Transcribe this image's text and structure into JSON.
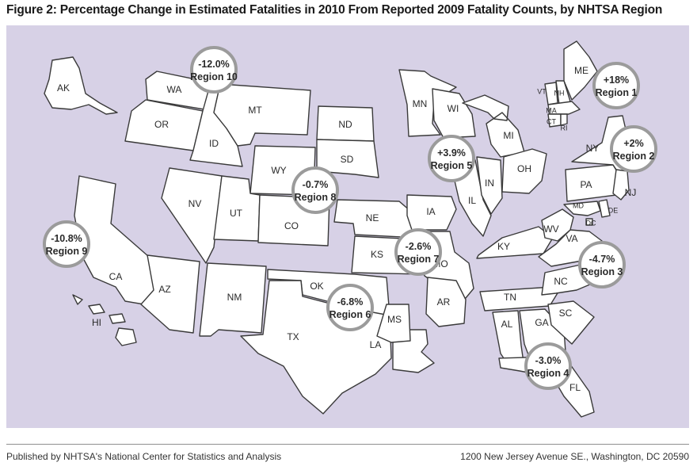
{
  "title": "Figure 2: Percentage Change in Estimated Fatalities in 2010 From Reported 2009 Fatality Counts, by NHTSA Region",
  "footer": {
    "left": "Published by NHTSA's National Center for Statistics and Analysis",
    "right": "1200 New Jersey Avenue SE., Washington, DC 20590"
  },
  "colors": {
    "background": "#d7d1e6",
    "state_fill": "#ffffff",
    "state_stroke": "#3a3a3a",
    "badge_ring": "#9b9b9b"
  },
  "states": [
    "AK",
    "WA",
    "OR",
    "ID",
    "MT",
    "ND",
    "SD",
    "WY",
    "NV",
    "UT",
    "CO",
    "CA",
    "AZ",
    "NM",
    "NE",
    "KS",
    "OK",
    "TX",
    "HI",
    "MN",
    "IA",
    "MO",
    "AR",
    "LA",
    "MS",
    "WI",
    "IL",
    "IN",
    "MI",
    "OH",
    "KY",
    "TN",
    "AL",
    "GA",
    "SC",
    "FL",
    "NC",
    "VA",
    "WV",
    "MD",
    "DE",
    "DC",
    "PA",
    "NY",
    "NJ",
    "ME",
    "VT",
    "NH",
    "MA",
    "CT",
    "RI"
  ],
  "regions": [
    {
      "name": "Region 1",
      "change": "+18%"
    },
    {
      "name": "Region 2",
      "change": "+2%"
    },
    {
      "name": "Region 3",
      "change": "-4.7%"
    },
    {
      "name": "Region 4",
      "change": "-3.0%"
    },
    {
      "name": "Region 5",
      "change": "+3.9%"
    },
    {
      "name": "Region 6",
      "change": "-6.8%"
    },
    {
      "name": "Region 7",
      "change": "-2.6%"
    },
    {
      "name": "Region 8",
      "change": "-0.7%"
    },
    {
      "name": "Region 9",
      "change": "-10.8%"
    },
    {
      "name": "Region 10",
      "change": "-12.0%"
    }
  ]
}
